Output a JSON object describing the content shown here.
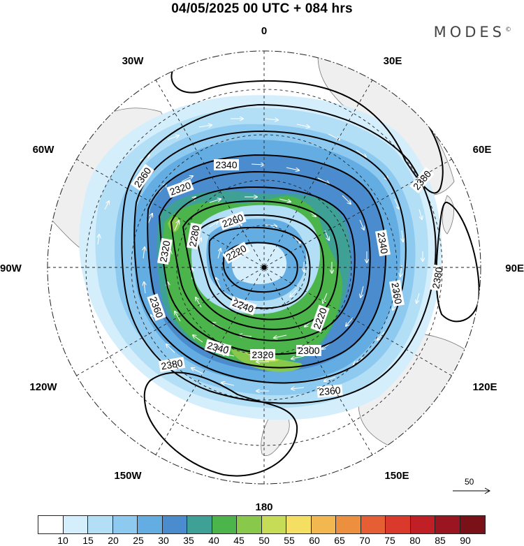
{
  "title": "04/05/2025  00 UTC  + 084 hrs",
  "brand": "MODES",
  "brand_mark": "©",
  "longitude_labels": {
    "top": "0",
    "bottom": "180",
    "left": "90W",
    "right": "90E",
    "upper_left_1": "30W",
    "upper_left_2": "60W",
    "upper_right_1": "30E",
    "upper_right_2": "60E",
    "lower_left_1": "120W",
    "lower_left_2": "150W",
    "lower_right_1": "120E",
    "lower_right_2": "150E"
  },
  "contour_labels": [
    "2360",
    "2340",
    "2320",
    "2380",
    "2260",
    "2280",
    "2220",
    "2320",
    "2240",
    "2220",
    "2300",
    "2320",
    "2340",
    "2360",
    "2380",
    "2340",
    "2360",
    "2380",
    "2360"
  ],
  "vector_scale": {
    "value": "50",
    "icon": "arrow-right-icon"
  },
  "colorbar": {
    "ticks": [
      "10",
      "15",
      "20",
      "25",
      "30",
      "35",
      "40",
      "45",
      "50",
      "55",
      "60",
      "65",
      "70",
      "75",
      "80",
      "85",
      "90"
    ],
    "colors": [
      "#ffffff",
      "#d5eefc",
      "#b3dff6",
      "#8ecaf0",
      "#64ade3",
      "#4a8cce",
      "#3fa095",
      "#4bb54c",
      "#88c94b",
      "#c6dc56",
      "#f5df63",
      "#f2b74e",
      "#ec8f3e",
      "#e65e33",
      "#d93a2b",
      "#c11f26",
      "#9a1520",
      "#7a1018"
    ]
  }
}
